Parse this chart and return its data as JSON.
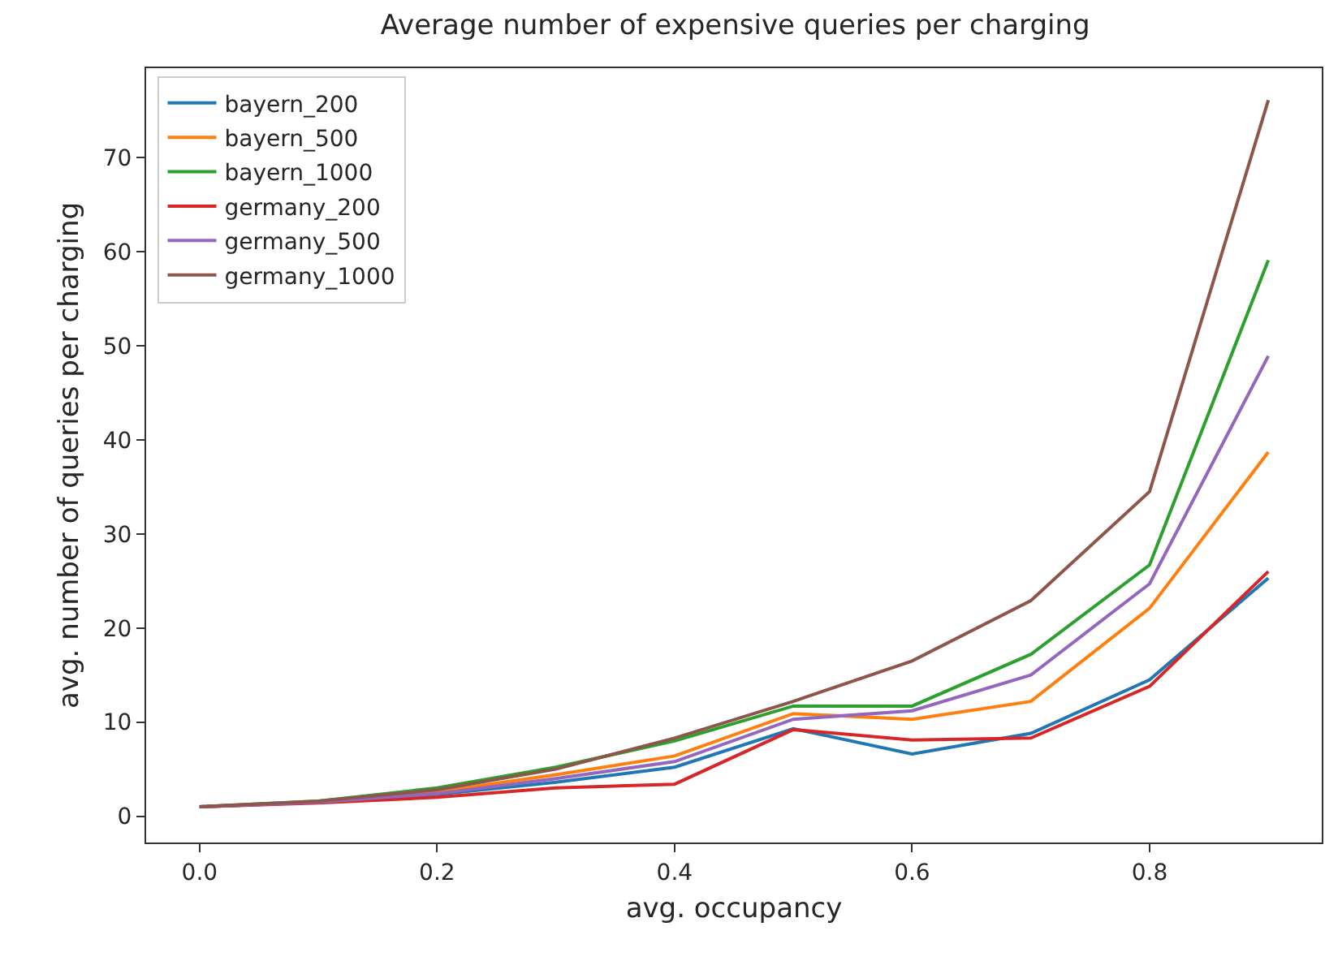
{
  "chart_data": {
    "type": "line",
    "title": "Average number of expensive queries per charging",
    "xlabel": "avg. occupancy",
    "ylabel": "avg. number of queries per charging",
    "x": [
      0,
      0.1,
      0.2,
      0.3,
      0.4,
      0.5,
      0.6,
      0.7,
      0.8,
      0.9
    ],
    "series": [
      {
        "name": "bayern_200",
        "color": "#1f77b4",
        "values": [
          1,
          1.5,
          2.3,
          3.6,
          5.2,
          9.3,
          6.6,
          8.8,
          14.5,
          25.3
        ]
      },
      {
        "name": "bayern_500",
        "color": "#ff7f0e",
        "values": [
          1,
          1.5,
          2.6,
          4.4,
          6.4,
          10.9,
          10.3,
          12.2,
          22.1,
          38.7
        ]
      },
      {
        "name": "bayern_1000",
        "color": "#2ca02c",
        "values": [
          1,
          1.6,
          3.0,
          5.2,
          8.0,
          11.7,
          11.7,
          17.2,
          26.7,
          59.1
        ]
      },
      {
        "name": "germany_200",
        "color": "#d62728",
        "values": [
          1,
          1.4,
          2.0,
          3.0,
          3.4,
          9.2,
          8.1,
          8.3,
          13.8,
          26.0
        ]
      },
      {
        "name": "germany_500",
        "color": "#9467bd",
        "values": [
          1,
          1.5,
          2.4,
          4.0,
          5.8,
          10.3,
          11.2,
          15.0,
          24.7,
          48.9
        ]
      },
      {
        "name": "germany_1000",
        "color": "#8c564b",
        "values": [
          1,
          1.6,
          2.8,
          5.0,
          8.3,
          12.2,
          16.5,
          22.9,
          34.5,
          76.1
        ]
      }
    ],
    "xlim": [
      -0.045,
      0.945
    ],
    "xticks": [
      {
        "value": 0,
        "label": "0.0"
      },
      {
        "value": 0.2,
        "label": "0.2"
      },
      {
        "value": 0.4,
        "label": "0.4"
      },
      {
        "value": 0.6,
        "label": "0.6"
      },
      {
        "value": 0.8,
        "label": "0.8"
      }
    ],
    "ylim": [
      -2.8,
      79.5
    ],
    "yticks": [
      0,
      10,
      20,
      30,
      40,
      50,
      60,
      70
    ],
    "grid": false,
    "legend": "top left",
    "marker": "none",
    "line_style": "solid"
  }
}
